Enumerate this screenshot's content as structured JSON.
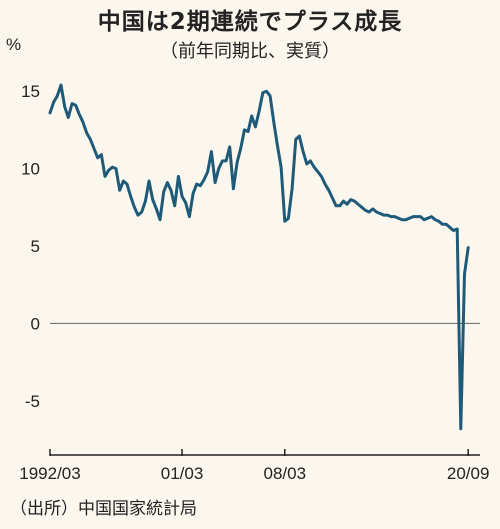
{
  "title": "中国は2期連続でプラス成長",
  "subtitle": "（前年同期比、実質）",
  "source": "（出所）中国国家統計局",
  "colors": {
    "line": "#1f5a78",
    "background": "#fbf7ef",
    "zero_line": "#777777",
    "axis": "#222222"
  },
  "chart_data": {
    "type": "line",
    "title": "中国は2期連続でプラス成長",
    "subtitle": "（前年同期比、実質）",
    "ylabel": "%",
    "ylim": [
      -8.5,
      16.5
    ],
    "yticks": [
      -5,
      0,
      5,
      10,
      15
    ],
    "ytick_labels": [
      "-5",
      "0",
      "5",
      "10",
      "15"
    ],
    "xlim": [
      1992.125,
      2020.75
    ],
    "xticks": [
      1992.125,
      2001.125,
      2008.125,
      2020.625
    ],
    "xtick_labels": [
      "1992/03",
      "01/03",
      "08/03",
      "20/09"
    ],
    "grid": false,
    "zero_line": true,
    "series": [
      {
        "name": "",
        "x": [
          1992.125,
          1992.375,
          1992.625,
          1992.875,
          1993.125,
          1993.375,
          1993.625,
          1993.875,
          1994.125,
          1994.375,
          1994.625,
          1994.875,
          1995.125,
          1995.375,
          1995.625,
          1995.875,
          1996.125,
          1996.375,
          1996.625,
          1996.875,
          1997.125,
          1997.375,
          1997.625,
          1997.875,
          1998.125,
          1998.375,
          1998.625,
          1998.875,
          1999.125,
          1999.375,
          1999.625,
          1999.875,
          2000.125,
          2000.375,
          2000.625,
          2000.875,
          2001.125,
          2001.375,
          2001.625,
          2001.875,
          2002.125,
          2002.375,
          2002.625,
          2002.875,
          2003.125,
          2003.375,
          2003.625,
          2003.875,
          2004.125,
          2004.375,
          2004.625,
          2004.875,
          2005.125,
          2005.375,
          2005.625,
          2005.875,
          2006.125,
          2006.375,
          2006.625,
          2006.875,
          2007.125,
          2007.375,
          2007.625,
          2007.875,
          2008.125,
          2008.375,
          2008.625,
          2008.875,
          2009.125,
          2009.375,
          2009.625,
          2009.875,
          2010.125,
          2010.375,
          2010.625,
          2010.875,
          2011.125,
          2011.375,
          2011.625,
          2011.875,
          2012.125,
          2012.375,
          2012.625,
          2012.875,
          2013.125,
          2013.375,
          2013.625,
          2013.875,
          2014.125,
          2014.375,
          2014.625,
          2014.875,
          2015.125,
          2015.375,
          2015.625,
          2015.875,
          2016.125,
          2016.375,
          2016.625,
          2016.875,
          2017.125,
          2017.375,
          2017.625,
          2017.875,
          2018.125,
          2018.375,
          2018.625,
          2018.875,
          2019.125,
          2019.375,
          2019.625,
          2019.875,
          2020.125,
          2020.375,
          2020.625
        ],
        "values": [
          13.6,
          14.3,
          14.7,
          15.4,
          14.0,
          13.3,
          14.2,
          14.1,
          13.5,
          13.0,
          12.3,
          11.9,
          11.3,
          10.7,
          10.9,
          9.5,
          9.9,
          10.1,
          10.0,
          8.6,
          9.2,
          9.0,
          8.2,
          7.5,
          7.0,
          7.2,
          7.9,
          9.2,
          8.0,
          7.4,
          6.7,
          8.5,
          9.1,
          8.6,
          7.6,
          9.5,
          8.2,
          7.8,
          6.9,
          8.4,
          9.0,
          8.9,
          9.3,
          9.8,
          11.1,
          9.1,
          10.0,
          10.5,
          10.5,
          11.4,
          8.7,
          10.4,
          11.3,
          12.5,
          12.4,
          13.4,
          12.7,
          13.7,
          14.9,
          15.0,
          14.7,
          13.0,
          11.5,
          10.1,
          6.6,
          6.8,
          8.7,
          11.9,
          12.1,
          11.1,
          10.3,
          10.5,
          10.1,
          9.8,
          9.5,
          9.0,
          8.6,
          8.1,
          7.6,
          7.6,
          7.9,
          7.7,
          8.0,
          7.9,
          7.7,
          7.5,
          7.3,
          7.2,
          7.4,
          7.2,
          7.1,
          7.0,
          7.0,
          6.9,
          6.9,
          6.8,
          6.7,
          6.7,
          6.8,
          6.9,
          6.9,
          6.9,
          6.7,
          6.8,
          6.9,
          6.7,
          6.6,
          6.4,
          6.4,
          6.2,
          6.0,
          6.1,
          -6.8,
          3.2,
          4.9
        ]
      }
    ]
  }
}
